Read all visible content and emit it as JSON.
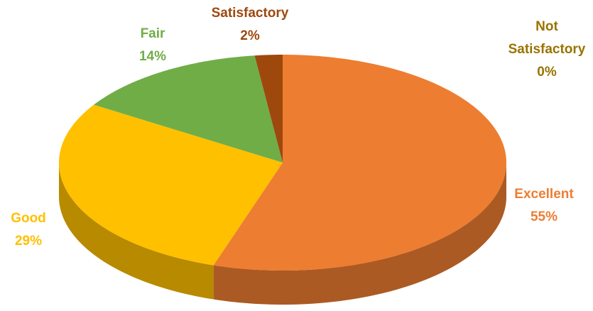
{
  "chart_data": {
    "type": "pie",
    "categories": [
      "Excellent",
      "Good",
      "Fair",
      "Satisfactory",
      "Not Satisfactory"
    ],
    "values": [
      55,
      29,
      14,
      2,
      0
    ],
    "value_labels": [
      "55%",
      "29%",
      "14%",
      "2%",
      "0%"
    ],
    "colors": [
      "#ED7D31",
      "#FFC000",
      "#70AD47",
      "#9E480E",
      "#997300"
    ]
  }
}
